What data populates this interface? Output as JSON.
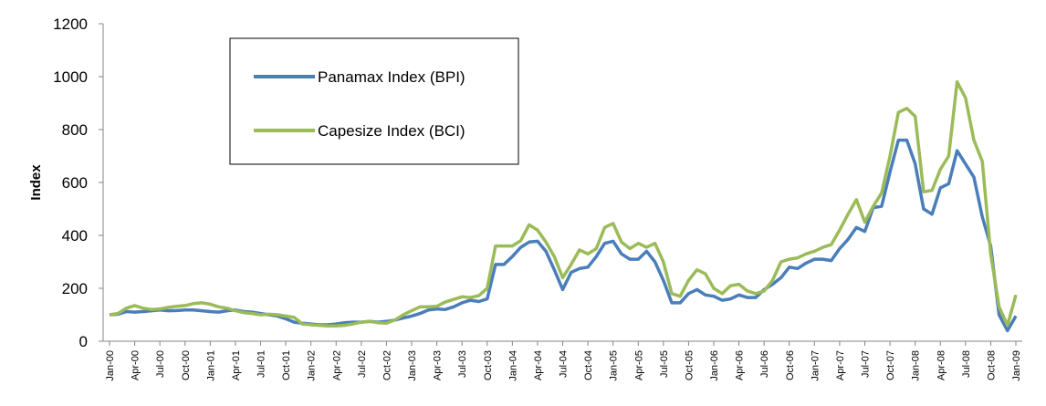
{
  "chart_data": {
    "type": "line",
    "y_label": "Index",
    "categories": [
      "Jan-00",
      null,
      null,
      "Apr-00",
      null,
      null,
      "Jul-00",
      null,
      null,
      "Oct-00",
      null,
      null,
      "Jan-01",
      null,
      null,
      "Apr-01",
      null,
      null,
      "Jul-01",
      null,
      null,
      "Oct-01",
      null,
      null,
      "Jan-02",
      null,
      null,
      "Apr-02",
      null,
      null,
      "Jul-02",
      null,
      null,
      "Oct-02",
      null,
      null,
      "Jan-03",
      null,
      null,
      "Apr-03",
      null,
      null,
      "Jul-03",
      null,
      null,
      "Oct-03",
      null,
      null,
      "Jan-04",
      null,
      null,
      "Apr-04",
      null,
      null,
      "Jul-04",
      null,
      null,
      "Oct-04",
      null,
      null,
      "Jan-05",
      null,
      null,
      "Apr-05",
      null,
      null,
      "Jul-05",
      null,
      null,
      "Oct-05",
      null,
      null,
      "Jan-06",
      null,
      null,
      "Apr-06",
      null,
      null,
      "Jul-06",
      null,
      null,
      "Oct-06",
      null,
      null,
      "Jan-07",
      null,
      null,
      "Apr-07",
      null,
      null,
      "Jul-07",
      null,
      null,
      "Oct-07",
      null,
      null,
      "Jan-08",
      null,
      null,
      "Apr-08",
      null,
      null,
      "Jul-08",
      null,
      null,
      "Oct-08",
      null,
      null,
      "Jan-09"
    ],
    "series": [
      {
        "name": "Panamax Index (BPI)",
        "color": "#4a7ebb",
        "values": [
          100,
          102,
          112,
          110,
          112,
          115,
          118,
          115,
          116,
          118,
          118,
          115,
          112,
          110,
          115,
          118,
          112,
          110,
          105,
          100,
          95,
          85,
          72,
          68,
          65,
          62,
          62,
          65,
          70,
          72,
          72,
          75,
          72,
          75,
          80,
          88,
          95,
          105,
          118,
          122,
          120,
          130,
          145,
          155,
          150,
          160,
          290,
          290,
          320,
          355,
          375,
          378,
          340,
          270,
          195,
          260,
          275,
          280,
          320,
          370,
          378,
          330,
          310,
          310,
          340,
          300,
          230,
          145,
          145,
          180,
          195,
          175,
          170,
          155,
          160,
          175,
          165,
          165,
          195,
          215,
          240,
          280,
          275,
          295,
          310,
          310,
          305,
          350,
          385,
          430,
          415,
          505,
          510,
          640,
          760,
          760,
          670,
          500,
          480,
          580,
          595,
          720,
          670,
          620,
          470,
          360,
          100,
          40,
          95
        ]
      },
      {
        "name": "Capesize Index (BCI)",
        "color": "#9bbb59",
        "values": [
          100,
          105,
          125,
          135,
          125,
          120,
          122,
          128,
          132,
          135,
          142,
          145,
          140,
          130,
          125,
          115,
          108,
          105,
          100,
          102,
          100,
          95,
          90,
          65,
          62,
          60,
          58,
          58,
          60,
          65,
          72,
          75,
          70,
          68,
          80,
          100,
          115,
          130,
          130,
          132,
          148,
          158,
          168,
          165,
          172,
          200,
          360,
          360,
          360,
          380,
          440,
          420,
          375,
          320,
          240,
          290,
          345,
          330,
          350,
          430,
          445,
          375,
          350,
          370,
          355,
          370,
          300,
          180,
          170,
          230,
          270,
          255,
          200,
          180,
          210,
          215,
          190,
          180,
          190,
          230,
          300,
          310,
          315,
          330,
          340,
          355,
          365,
          420,
          480,
          535,
          450,
          510,
          560,
          700,
          865,
          880,
          850,
          565,
          570,
          650,
          700,
          980,
          920,
          760,
          680,
          330,
          130,
          60,
          175
        ]
      }
    ],
    "ylim": [
      0,
      1200
    ],
    "yticks": [
      0,
      200,
      400,
      600,
      800,
      1000,
      1200
    ],
    "grid": false
  }
}
